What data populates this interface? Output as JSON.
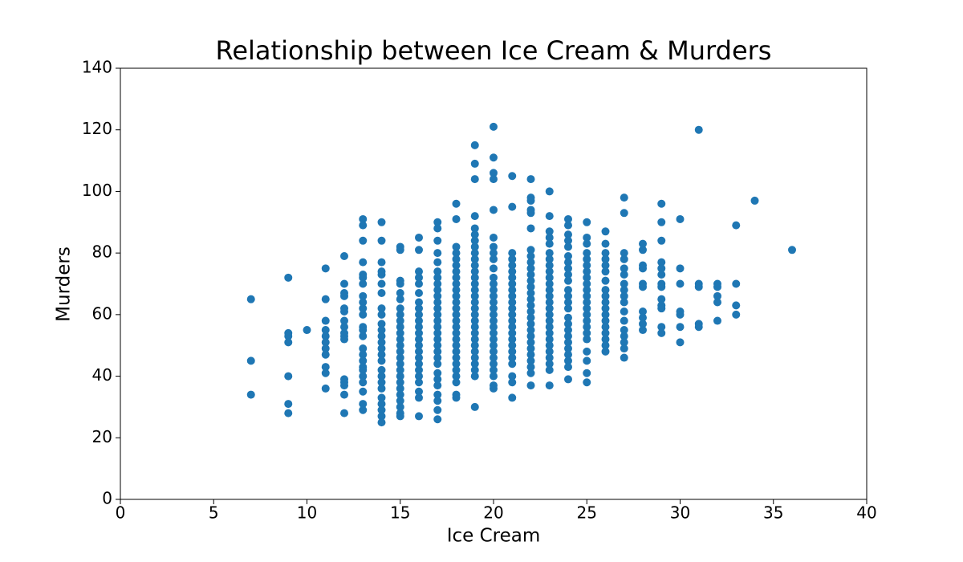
{
  "chart_data": {
    "type": "scatter",
    "title": "Relationship between Ice Cream & Murders",
    "xlabel": "Ice Cream",
    "ylabel": "Murders",
    "color": "#1f77b4",
    "xlim": [
      0,
      40
    ],
    "xticks": [
      0,
      5,
      10,
      15,
      20,
      25,
      30,
      35,
      40
    ],
    "ylim": [
      0,
      140
    ],
    "yticks": [
      0,
      20,
      40,
      60,
      80,
      100,
      120,
      140
    ],
    "x": [
      7,
      7,
      7,
      9,
      9,
      9,
      9,
      9,
      9,
      9,
      10,
      11,
      11,
      11,
      11,
      11,
      11,
      11,
      11,
      11,
      11,
      11,
      12,
      12,
      12,
      12,
      12,
      12,
      12,
      12,
      12,
      12,
      12,
      12,
      12,
      12,
      12,
      12,
      13,
      13,
      13,
      13,
      13,
      13,
      13,
      13,
      13,
      13,
      13,
      13,
      13,
      13,
      13,
      13,
      13,
      13,
      13,
      13,
      13,
      13,
      13,
      13,
      14,
      14,
      14,
      14,
      14,
      14,
      14,
      14,
      14,
      14,
      14,
      14,
      14,
      14,
      14,
      14,
      14,
      14,
      14,
      14,
      14,
      14,
      14,
      14,
      14,
      15,
      15,
      15,
      15,
      15,
      15,
      15,
      15,
      15,
      15,
      15,
      15,
      15,
      15,
      15,
      15,
      15,
      15,
      15,
      15,
      15,
      15,
      15,
      15,
      15,
      16,
      16,
      16,
      16,
      16,
      16,
      16,
      16,
      16,
      16,
      16,
      16,
      16,
      16,
      16,
      16,
      16,
      16,
      16,
      16,
      16,
      16,
      16,
      17,
      17,
      17,
      17,
      17,
      17,
      17,
      17,
      17,
      17,
      17,
      17,
      17,
      17,
      17,
      17,
      17,
      17,
      17,
      17,
      17,
      17,
      17,
      17,
      17,
      17,
      17,
      17,
      18,
      18,
      18,
      18,
      18,
      18,
      18,
      18,
      18,
      18,
      18,
      18,
      18,
      18,
      18,
      18,
      18,
      18,
      18,
      18,
      18,
      18,
      18,
      18,
      18,
      18,
      18,
      19,
      19,
      19,
      19,
      19,
      19,
      19,
      19,
      19,
      19,
      19,
      19,
      19,
      19,
      19,
      19,
      19,
      19,
      19,
      19,
      19,
      19,
      19,
      19,
      19,
      19,
      19,
      19,
      19,
      19,
      20,
      20,
      20,
      20,
      20,
      20,
      20,
      20,
      20,
      20,
      20,
      20,
      20,
      20,
      20,
      20,
      20,
      20,
      20,
      20,
      20,
      20,
      20,
      20,
      20,
      20,
      20,
      20,
      20,
      21,
      21,
      21,
      21,
      21,
      21,
      21,
      21,
      21,
      21,
      21,
      21,
      21,
      21,
      21,
      21,
      21,
      21,
      21,
      21,
      21,
      21,
      21,
      21,
      22,
      22,
      22,
      22,
      22,
      22,
      22,
      22,
      22,
      22,
      22,
      22,
      22,
      22,
      22,
      22,
      22,
      22,
      22,
      22,
      22,
      22,
      22,
      22,
      22,
      22,
      22,
      22,
      23,
      23,
      23,
      23,
      23,
      23,
      23,
      23,
      23,
      23,
      23,
      23,
      23,
      23,
      23,
      23,
      23,
      23,
      23,
      23,
      23,
      23,
      23,
      23,
      23,
      23,
      24,
      24,
      24,
      24,
      24,
      24,
      24,
      24,
      24,
      24,
      24,
      24,
      24,
      24,
      24,
      24,
      24,
      24,
      24,
      24,
      24,
      24,
      24,
      24,
      25,
      25,
      25,
      25,
      25,
      25,
      25,
      25,
      25,
      25,
      25,
      25,
      25,
      25,
      25,
      25,
      25,
      25,
      25,
      25,
      25,
      25,
      26,
      26,
      26,
      26,
      26,
      26,
      26,
      26,
      26,
      26,
      26,
      26,
      26,
      26,
      26,
      26,
      26,
      26,
      27,
      27,
      27,
      27,
      27,
      27,
      27,
      27,
      27,
      27,
      27,
      27,
      27,
      27,
      27,
      27,
      27,
      28,
      28,
      28,
      28,
      28,
      28,
      28,
      28,
      28,
      28,
      29,
      29,
      29,
      29,
      29,
      29,
      29,
      29,
      29,
      29,
      29,
      29,
      29,
      30,
      30,
      30,
      30,
      30,
      30,
      30,
      31,
      31,
      31,
      31,
      31,
      32,
      32,
      32,
      32,
      32,
      33,
      33,
      33,
      33,
      34,
      36
    ],
    "y": [
      65,
      45,
      34,
      72,
      54,
      53,
      51,
      40,
      31,
      28,
      55,
      75,
      65,
      58,
      55,
      53,
      51,
      49,
      47,
      43,
      41,
      36,
      79,
      70,
      67,
      66,
      62,
      61,
      58,
      56,
      54,
      53,
      52,
      39,
      38,
      37,
      34,
      28,
      91,
      89,
      84,
      77,
      73,
      72,
      70,
      66,
      64,
      62,
      60,
      56,
      55,
      53,
      49,
      47,
      45,
      43,
      42,
      40,
      38,
      35,
      31,
      29,
      90,
      84,
      77,
      74,
      73,
      70,
      67,
      62,
      60,
      57,
      55,
      53,
      51,
      49,
      47,
      45,
      42,
      40,
      38,
      36,
      33,
      31,
      29,
      27,
      25,
      82,
      81,
      71,
      70,
      67,
      65,
      62,
      60,
      58,
      56,
      54,
      52,
      50,
      48,
      46,
      44,
      42,
      40,
      38,
      36,
      34,
      32,
      30,
      28,
      27,
      85,
      81,
      74,
      72,
      70,
      67,
      64,
      62,
      60,
      58,
      56,
      54,
      52,
      50,
      48,
      46,
      44,
      42,
      40,
      38,
      35,
      33,
      27,
      90,
      88,
      84,
      80,
      77,
      74,
      72,
      70,
      68,
      66,
      64,
      62,
      60,
      58,
      56,
      54,
      52,
      50,
      48,
      46,
      44,
      41,
      39,
      37,
      34,
      32,
      29,
      26,
      96,
      91,
      82,
      80,
      78,
      76,
      74,
      72,
      70,
      68,
      66,
      64,
      62,
      60,
      58,
      56,
      54,
      52,
      50,
      48,
      46,
      44,
      42,
      40,
      38,
      34,
      33,
      115,
      109,
      104,
      92,
      88,
      86,
      84,
      82,
      80,
      78,
      76,
      74,
      72,
      70,
      68,
      66,
      64,
      62,
      60,
      58,
      56,
      54,
      52,
      50,
      48,
      46,
      44,
      42,
      40,
      30,
      121,
      111,
      106,
      104,
      94,
      85,
      82,
      80,
      78,
      75,
      72,
      70,
      68,
      66,
      64,
      62,
      60,
      58,
      56,
      54,
      52,
      50,
      48,
      46,
      44,
      42,
      40,
      37,
      36,
      105,
      95,
      80,
      78,
      76,
      74,
      72,
      70,
      68,
      66,
      64,
      62,
      60,
      58,
      56,
      54,
      52,
      50,
      48,
      46,
      44,
      40,
      38,
      33,
      104,
      98,
      97,
      94,
      93,
      88,
      81,
      79,
      77,
      75,
      73,
      71,
      69,
      67,
      65,
      63,
      61,
      59,
      57,
      55,
      53,
      51,
      49,
      47,
      45,
      43,
      41,
      37,
      100,
      92,
      87,
      85,
      83,
      80,
      78,
      76,
      74,
      72,
      70,
      68,
      66,
      64,
      62,
      60,
      58,
      56,
      54,
      52,
      50,
      48,
      46,
      44,
      42,
      37,
      91,
      89,
      86,
      84,
      82,
      79,
      77,
      75,
      73,
      71,
      68,
      66,
      64,
      62,
      59,
      57,
      55,
      53,
      51,
      49,
      47,
      45,
      43,
      39,
      90,
      85,
      83,
      80,
      78,
      76,
      74,
      72,
      70,
      68,
      66,
      64,
      62,
      60,
      58,
      56,
      54,
      52,
      48,
      45,
      41,
      38,
      87,
      83,
      80,
      78,
      76,
      74,
      71,
      68,
      66,
      64,
      62,
      60,
      58,
      56,
      54,
      52,
      50,
      48,
      98,
      93,
      80,
      78,
      75,
      73,
      70,
      68,
      66,
      64,
      61,
      58,
      55,
      53,
      51,
      49,
      46,
      83,
      81,
      76,
      75,
      70,
      69,
      61,
      59,
      57,
      55,
      96,
      90,
      84,
      77,
      75,
      73,
      70,
      69,
      65,
      63,
      62,
      56,
      54,
      91,
      75,
      70,
      61,
      60,
      56,
      51,
      120,
      70,
      69,
      57,
      56,
      70,
      69,
      66,
      64,
      58,
      89,
      70,
      63,
      60,
      97,
      81
    ]
  }
}
